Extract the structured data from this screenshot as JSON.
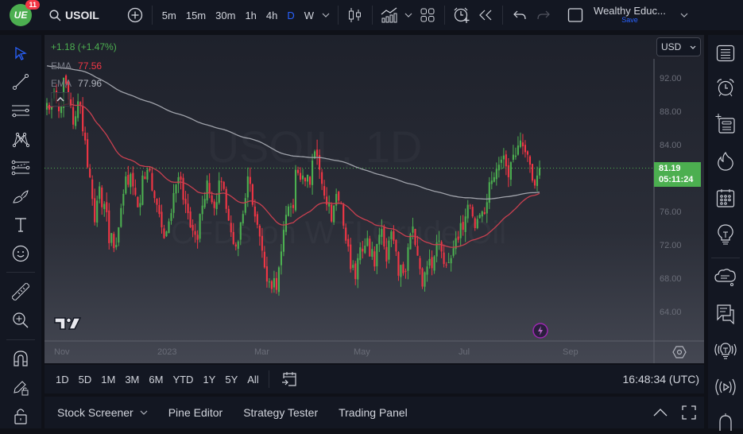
{
  "topbar": {
    "logo_text": "UE",
    "notification_count": "11",
    "symbol": "USOIL",
    "intervals": [
      "5m",
      "15m",
      "30m",
      "1h",
      "4h",
      "D",
      "W"
    ],
    "active_interval": "D",
    "account_name": "Wealthy Educ...",
    "save_label": "Save"
  },
  "legend": {
    "change": "+1.18 (+1.47%)",
    "ema1_label": "EMA",
    "ema1_value": "77.56",
    "ema2_label": "EMA",
    "ema2_value": "77.96"
  },
  "colors": {
    "up": "#4caf50",
    "down": "#f23645",
    "ema_fast": "#c94050",
    "ema_slow": "#a0a3ab",
    "accent": "#2962ff"
  },
  "currency": "USD",
  "price_badge": {
    "price": "81.19",
    "countdown": "05:11:24"
  },
  "watermark": {
    "line1": "USOIL, 1D",
    "line2": "CFDs on WTI Crude Oil"
  },
  "time_axis_labels": [
    {
      "label": "Nov",
      "x": 12
    },
    {
      "label": "2023",
      "x": 142
    },
    {
      "label": "Mar",
      "x": 264
    },
    {
      "label": "May",
      "x": 389
    },
    {
      "label": "Jul",
      "x": 521
    },
    {
      "label": "Sep",
      "x": 652
    }
  ],
  "range_buttons": [
    "1D",
    "5D",
    "1M",
    "3M",
    "6M",
    "YTD",
    "1Y",
    "5Y",
    "All"
  ],
  "clock": "16:48:34 (UTC)",
  "bottom_tabs": [
    "Stock Screener",
    "Pine Editor",
    "Strategy Tester",
    "Trading Panel"
  ],
  "chart_data": {
    "type": "candlestick",
    "title": "USOIL, 1D — CFDs on WTI Crude Oil",
    "y_ticks": [
      92,
      88,
      84,
      80,
      76,
      72,
      68,
      64
    ],
    "y_tick_labels": [
      "92.00",
      "88.00",
      "84.00",
      "",
      "76.00",
      "72.00",
      "68.00",
      "64.00"
    ],
    "ylim": [
      61,
      95
    ],
    "x_tick_labels": [
      "Nov",
      "2023",
      "Mar",
      "May",
      "Jul",
      "Sep"
    ],
    "last_price": 81.19,
    "closes": [
      89.0,
      88.2,
      89.5,
      90.3,
      89.0,
      88.0,
      88.6,
      92.0,
      91.3,
      89.4,
      88.7,
      86.4,
      87.4,
      89.2,
      88.8,
      85.6,
      84.5,
      81.3,
      80.1,
      77.5,
      74.7,
      77.3,
      79.0,
      76.5,
      76.9,
      75.9,
      72.2,
      73.4,
      71.6,
      72.0,
      74.1,
      76.4,
      78.1,
      80.2,
      79.2,
      80.5,
      79.0,
      78.0,
      76.5,
      77.0,
      80.3,
      79.9,
      81.0,
      80.9,
      78.5,
      77.6,
      76.8,
      75.7,
      74.1,
      72.8,
      73.6,
      74.8,
      75.8,
      78.2,
      79.2,
      80.1,
      79.8,
      77.4,
      76.9,
      75.8,
      74.1,
      73.7,
      73.2,
      72.6,
      75.7,
      76.7,
      77.5,
      79.7,
      78.2,
      77.1,
      76.4,
      77.1,
      79.7,
      79.5,
      78.7,
      76.3,
      74.9,
      73.5,
      72.1,
      71.8,
      72.4,
      74.7,
      75.7,
      77.6,
      80.2,
      79.3,
      76.8,
      75.4,
      74.4,
      73.0,
      71.3,
      69.3,
      67.6,
      67.6,
      66.7,
      68.0,
      66.6,
      69.3,
      71.2,
      73.8,
      75.6,
      76.6,
      76.6,
      76.4,
      81.0,
      80.6,
      79.8,
      80.3,
      79.6,
      80.4,
      79.2,
      82.1,
      83.2,
      82.6,
      81.0,
      79.3,
      77.9,
      76.8,
      77.1,
      74.8,
      76.7,
      78.1,
      77.3,
      77.0,
      74.3,
      72.5,
      71.8,
      69.1,
      69.6,
      67.9,
      70.4,
      71.7,
      71.2,
      71.9,
      72.8,
      70.6,
      71.5,
      69.4,
      72.1,
      73.2,
      73.9,
      71.8,
      70.0,
      72.5,
      73.6,
      72.5,
      71.2,
      68.3,
      69.6,
      68.6,
      68.8,
      71.7,
      73.3,
      74.2,
      72.0,
      70.7,
      69.1,
      67.0,
      68.7,
      69.4,
      70.3,
      69.2,
      70.6,
      72.3,
      72.5,
      71.2,
      69.7,
      69.6,
      69.9,
      70.4,
      71.6,
      72.8,
      72.6,
      74.6,
      73.8,
      75.4,
      76.8,
      76.7,
      75.4,
      74.0,
      75.1,
      75.6,
      76.0,
      75.7,
      77.1,
      79.5,
      79.7,
      80.1,
      81.1,
      81.6,
      82.2,
      82.7,
      81.4,
      80.1,
      81.9,
      82.8,
      82.7,
      83.9,
      84.5,
      83.8,
      83.1,
      82.8,
      81.6,
      79.7,
      79.1,
      80.3,
      81.19
    ],
    "ema_fast_final": 77.56,
    "ema_slow_final": 77.96
  }
}
